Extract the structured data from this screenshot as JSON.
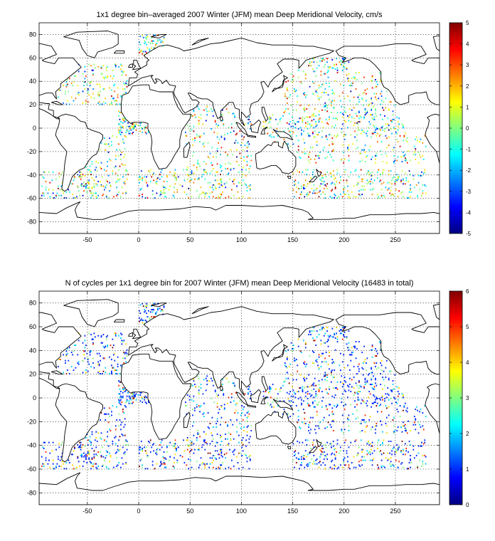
{
  "chart_data": [
    {
      "type": "heatmap",
      "title": "1x1 degree bin–averaged 2007 Winter (JFM) mean Deep Meridional Velocity, cm/s",
      "xlabel": "",
      "ylabel": "",
      "xlim": [
        -97,
        293
      ],
      "ylim": [
        -90,
        90
      ],
      "x_ticks": [
        -50,
        0,
        50,
        100,
        150,
        200,
        250
      ],
      "y_ticks": [
        -80,
        -60,
        -40,
        -20,
        0,
        20,
        40,
        60,
        80
      ],
      "grid": true,
      "colorbar": {
        "min": -5,
        "max": 5,
        "ticks": [
          -5,
          -4,
          -3,
          -2,
          -1,
          0,
          1,
          2,
          3,
          4,
          5
        ],
        "colormap": "jet"
      },
      "bins_description": "scattered 1x1 degree bins of mean deep meridional velocity, values between -5 and 5 cm/s across all ocean basins"
    },
    {
      "type": "heatmap",
      "title": "N of cycles per 1x1 degree bin for 2007 Winter (JFM) mean Deep Meridional Velocity (16483 in total)",
      "xlabel": "",
      "ylabel": "",
      "xlim": [
        -97,
        293
      ],
      "ylim": [
        -90,
        90
      ],
      "x_ticks": [
        -50,
        0,
        50,
        100,
        150,
        200,
        250
      ],
      "y_ticks": [
        -80,
        -60,
        -40,
        -20,
        0,
        20,
        40,
        60,
        80
      ],
      "grid": true,
      "total_cycles": 16483,
      "colorbar": {
        "min": 0,
        "max": 6,
        "ticks": [
          0,
          1,
          2,
          3,
          4,
          5,
          6
        ],
        "colormap": "jet"
      },
      "bins_description": "scattered 1x1 degree bins, mostly 1-2 cycles per bin, occasional higher counts"
    }
  ]
}
